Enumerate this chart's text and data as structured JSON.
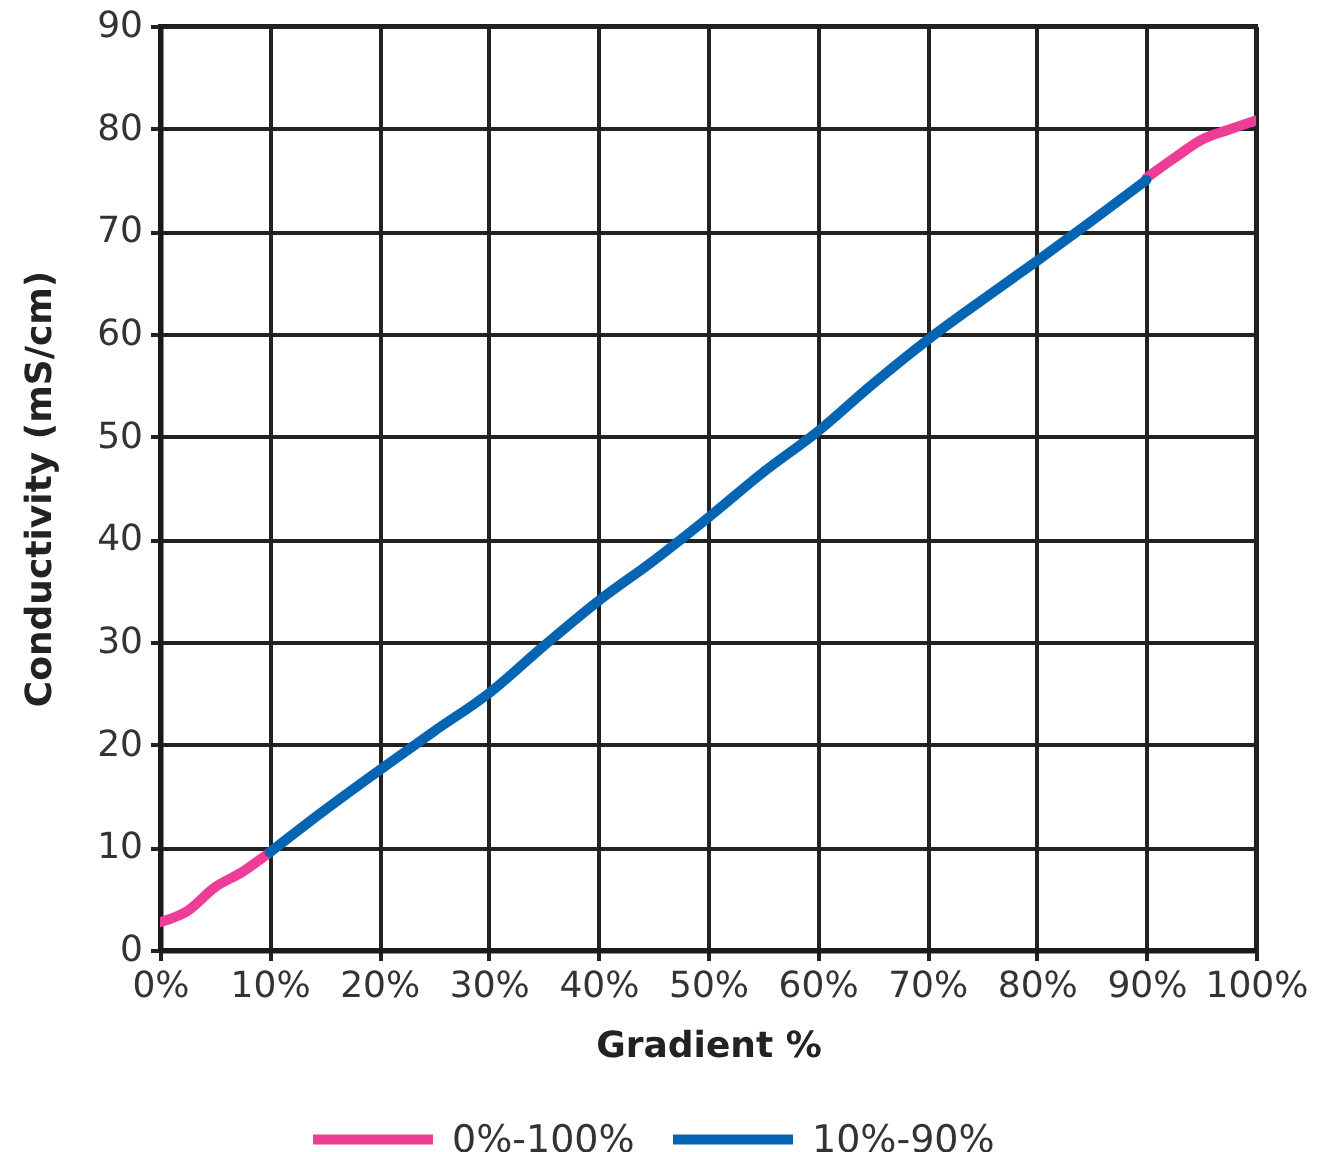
{
  "chart_data": {
    "type": "line",
    "xlabel": "Gradient %",
    "ylabel": "Conductivity (mS/cm)",
    "xlim": [
      0,
      100
    ],
    "xticks": [
      {
        "value": 0,
        "label": "0%"
      },
      {
        "value": 10,
        "label": "10%"
      },
      {
        "value": 20,
        "label": "20%"
      },
      {
        "value": 30,
        "label": "30%"
      },
      {
        "value": 40,
        "label": "40%"
      },
      {
        "value": 50,
        "label": "50%"
      },
      {
        "value": 60,
        "label": "60%"
      },
      {
        "value": 70,
        "label": "70%"
      },
      {
        "value": 80,
        "label": "80%"
      },
      {
        "value": 90,
        "label": "90%"
      },
      {
        "value": 100,
        "label": "100%"
      }
    ],
    "ylim": [
      0,
      90
    ],
    "yticks": [
      0,
      10,
      20,
      30,
      40,
      50,
      60,
      70,
      80,
      90
    ],
    "grid": true,
    "legend": "bottom",
    "marker": "none",
    "line_style": "solid",
    "series": [
      {
        "name": "0%-100%",
        "color": "#ee3d96",
        "x": [
          0,
          2.5,
          5,
          7.5,
          10,
          50,
          90,
          92.5,
          95,
          97.5,
          100
        ],
        "values": [
          2.7,
          3.8,
          6.1,
          7.6,
          9.5,
          null,
          75.2,
          77.1,
          78.9,
          79.9,
          80.8
        ]
      },
      {
        "name": "10%-90%",
        "color": "#0665b3",
        "x": [
          10,
          15,
          20,
          25,
          30,
          35,
          40,
          45,
          50,
          55,
          60,
          65,
          70,
          75,
          80,
          85,
          90
        ],
        "values": [
          9.5,
          13.6,
          17.5,
          21.3,
          25.0,
          29.6,
          34.0,
          37.9,
          42.1,
          46.5,
          50.5,
          55.1,
          59.4,
          63.3,
          67.1,
          71.0,
          75.0
        ]
      }
    ]
  }
}
